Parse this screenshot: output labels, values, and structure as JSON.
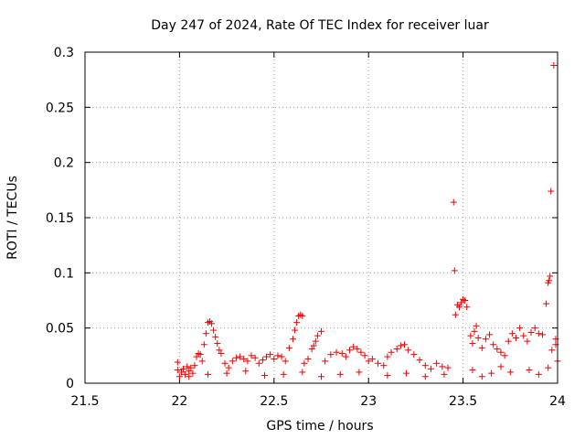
{
  "chart_data": {
    "type": "scatter",
    "title": "Day 247 of 2024, Rate Of TEC Index for receiver luar",
    "xlabel": "GPS time / hours",
    "ylabel": "ROTI / TECUs",
    "xlim": [
      21.5,
      24
    ],
    "ylim": [
      0,
      0.3
    ],
    "xticks": [
      21.5,
      22,
      22.5,
      23,
      23.5,
      24
    ],
    "xtick_labels": [
      "21.5",
      "22",
      "22.5",
      "23",
      "23.5",
      "24"
    ],
    "yticks": [
      0,
      0.05,
      0.1,
      0.15,
      0.2,
      0.25,
      0.3
    ],
    "ytick_labels": [
      "0",
      "0.05",
      "0.1",
      "0.15",
      "0.2",
      "0.25",
      "0.3"
    ],
    "grid": true,
    "marker": "+",
    "color": "#ee0000",
    "series": [
      {
        "name": "ROTI",
        "points": [
          [
            21.99,
            0.019
          ],
          [
            21.99,
            0.012
          ],
          [
            22.0,
            0.006
          ],
          [
            22.01,
            0.01
          ],
          [
            22.02,
            0.013
          ],
          [
            22.03,
            0.008
          ],
          [
            22.04,
            0.015
          ],
          [
            22.05,
            0.011
          ],
          [
            22.06,
            0.014
          ],
          [
            22.07,
            0.009
          ],
          [
            22.08,
            0.016
          ],
          [
            22.09,
            0.024
          ],
          [
            22.1,
            0.027
          ],
          [
            22.11,
            0.026
          ],
          [
            22.12,
            0.02
          ],
          [
            22.13,
            0.035
          ],
          [
            22.14,
            0.045
          ],
          [
            22.15,
            0.055
          ],
          [
            22.16,
            0.056
          ],
          [
            22.17,
            0.054
          ],
          [
            22.18,
            0.048
          ],
          [
            22.19,
            0.042
          ],
          [
            22.2,
            0.036
          ],
          [
            22.21,
            0.03
          ],
          [
            22.22,
            0.027
          ],
          [
            22.24,
            0.018
          ],
          [
            22.26,
            0.014
          ],
          [
            22.28,
            0.02
          ],
          [
            22.3,
            0.023
          ],
          [
            22.32,
            0.024
          ],
          [
            22.34,
            0.022
          ],
          [
            22.36,
            0.02
          ],
          [
            22.38,
            0.025
          ],
          [
            22.4,
            0.023
          ],
          [
            22.42,
            0.018
          ],
          [
            22.44,
            0.021
          ],
          [
            22.46,
            0.024
          ],
          [
            22.48,
            0.026
          ],
          [
            22.5,
            0.022
          ],
          [
            22.52,
            0.025
          ],
          [
            22.54,
            0.024
          ],
          [
            22.56,
            0.02
          ],
          [
            22.58,
            0.032
          ],
          [
            22.6,
            0.04
          ],
          [
            22.61,
            0.048
          ],
          [
            22.62,
            0.055
          ],
          [
            22.63,
            0.061
          ],
          [
            22.64,
            0.062
          ],
          [
            22.65,
            0.061
          ],
          [
            22.66,
            0.018
          ],
          [
            22.68,
            0.022
          ],
          [
            22.7,
            0.031
          ],
          [
            22.71,
            0.034
          ],
          [
            22.72,
            0.038
          ],
          [
            22.73,
            0.043
          ],
          [
            22.75,
            0.047
          ],
          [
            22.77,
            0.02
          ],
          [
            22.8,
            0.026
          ],
          [
            22.83,
            0.028
          ],
          [
            22.86,
            0.027
          ],
          [
            22.88,
            0.024
          ],
          [
            22.9,
            0.03
          ],
          [
            22.92,
            0.033
          ],
          [
            22.94,
            0.031
          ],
          [
            22.96,
            0.028
          ],
          [
            22.98,
            0.025
          ],
          [
            23.0,
            0.02
          ],
          [
            23.02,
            0.022
          ],
          [
            23.05,
            0.018
          ],
          [
            23.08,
            0.016
          ],
          [
            23.1,
            0.024
          ],
          [
            23.12,
            0.028
          ],
          [
            23.15,
            0.031
          ],
          [
            23.17,
            0.034
          ],
          [
            23.19,
            0.035
          ],
          [
            23.21,
            0.03
          ],
          [
            23.24,
            0.026
          ],
          [
            23.27,
            0.021
          ],
          [
            23.3,
            0.016
          ],
          [
            23.33,
            0.013
          ],
          [
            23.36,
            0.018
          ],
          [
            23.39,
            0.015
          ],
          [
            23.42,
            0.014
          ],
          [
            23.45,
            0.164
          ],
          [
            23.455,
            0.102
          ],
          [
            23.46,
            0.062
          ],
          [
            23.47,
            0.071
          ],
          [
            23.48,
            0.069
          ],
          [
            23.49,
            0.073
          ],
          [
            23.5,
            0.076
          ],
          [
            23.51,
            0.075
          ],
          [
            23.52,
            0.069
          ],
          [
            23.54,
            0.043
          ],
          [
            23.55,
            0.036
          ],
          [
            23.56,
            0.047
          ],
          [
            23.57,
            0.052
          ],
          [
            23.58,
            0.041
          ],
          [
            23.6,
            0.032
          ],
          [
            23.62,
            0.04
          ],
          [
            23.64,
            0.044
          ],
          [
            23.66,
            0.035
          ],
          [
            23.68,
            0.031
          ],
          [
            23.7,
            0.028
          ],
          [
            23.72,
            0.025
          ],
          [
            23.74,
            0.038
          ],
          [
            23.76,
            0.045
          ],
          [
            23.78,
            0.041
          ],
          [
            23.8,
            0.05
          ],
          [
            23.82,
            0.043
          ],
          [
            23.84,
            0.038
          ],
          [
            23.86,
            0.046
          ],
          [
            23.88,
            0.05
          ],
          [
            23.9,
            0.045
          ],
          [
            23.92,
            0.044
          ],
          [
            23.94,
            0.072
          ],
          [
            23.95,
            0.091
          ],
          [
            23.955,
            0.093
          ],
          [
            23.96,
            0.097
          ],
          [
            23.965,
            0.174
          ],
          [
            23.97,
            0.03
          ],
          [
            23.98,
            0.288
          ],
          [
            23.99,
            0.04
          ],
          [
            23.99,
            0.035
          ],
          [
            23.7,
            0.015
          ],
          [
            23.75,
            0.01
          ],
          [
            23.85,
            0.012
          ],
          [
            23.9,
            0.008
          ],
          [
            23.95,
            0.014
          ],
          [
            24.0,
            0.02
          ],
          [
            23.6,
            0.006
          ],
          [
            23.65,
            0.009
          ],
          [
            23.55,
            0.012
          ],
          [
            23.4,
            0.008
          ],
          [
            23.3,
            0.006
          ],
          [
            23.2,
            0.009
          ],
          [
            23.1,
            0.007
          ],
          [
            22.95,
            0.01
          ],
          [
            22.85,
            0.008
          ],
          [
            22.75,
            0.006
          ],
          [
            22.65,
            0.01
          ],
          [
            22.55,
            0.008
          ],
          [
            22.45,
            0.007
          ],
          [
            22.35,
            0.011
          ],
          [
            22.25,
            0.009
          ],
          [
            22.15,
            0.008
          ],
          [
            22.05,
            0.006
          ]
        ]
      }
    ]
  }
}
